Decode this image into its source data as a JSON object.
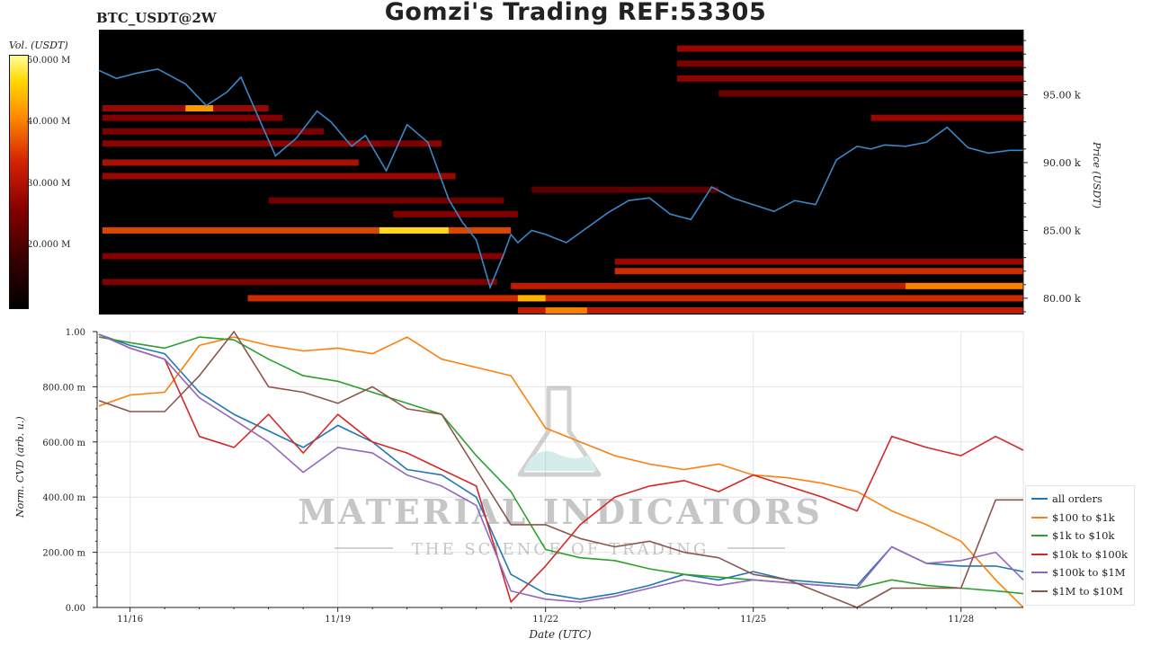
{
  "title": "Gomzi's Trading REF:53305",
  "symbol": "BTC_USDT@2W",
  "colorbar": {
    "title": "Vol. (USDT)",
    "ticks": [
      "50.000 M",
      "40.000 M",
      "30.000 M",
      "20.000 M"
    ]
  },
  "watermark": {
    "name": "MATERIAL INDICATORS",
    "tagline": "THE SCIENCE OF TRADING"
  },
  "chart_data": [
    {
      "type": "heatmap",
      "title": "BTC_USDT@2W",
      "ylabel": "Price (USDT)",
      "ylim": [
        78800,
        99800
      ],
      "y_ticks": [
        "80.00 k",
        "85.00 k",
        "90.00 k",
        "95.00 k"
      ],
      "colorbar_label": "Vol. (USDT)",
      "colorbar_ticks": [
        "50.000 M",
        "40.000 M",
        "30.000 M",
        "20.000 M"
      ],
      "price_series": {
        "color": "#3a87c8",
        "x": [
          15.55,
          15.8,
          16.1,
          16.4,
          16.8,
          17.1,
          17.4,
          17.6,
          17.9,
          18.1,
          18.4,
          18.7,
          18.9,
          19.2,
          19.4,
          19.7,
          20.0,
          20.3,
          20.6,
          20.8,
          21.0,
          21.2,
          21.4,
          21.5,
          21.6,
          21.8,
          22.0,
          22.3,
          22.6,
          22.9,
          23.2,
          23.5,
          23.8,
          24.1,
          24.4,
          24.7,
          25.0,
          25.3,
          25.6,
          25.9,
          26.2,
          26.5,
          26.7,
          26.9,
          27.2,
          27.5,
          27.8,
          28.1,
          28.4,
          28.7,
          28.9
        ],
        "y": [
          96.8,
          96.2,
          96.6,
          96.9,
          95.8,
          94.2,
          95.2,
          96.3,
          92.8,
          90.5,
          91.8,
          93.8,
          93.0,
          91.2,
          92.0,
          89.4,
          92.8,
          91.5,
          87.3,
          85.6,
          84.3,
          80.8,
          83.3,
          84.7,
          84.1,
          85.0,
          84.7,
          84.1,
          85.2,
          86.3,
          87.2,
          87.4,
          86.2,
          85.8,
          88.2,
          87.4,
          86.9,
          86.4,
          87.2,
          86.9,
          90.2,
          91.2,
          91.0,
          91.3,
          91.2,
          91.5,
          92.6,
          91.1,
          90.7,
          90.9,
          90.9
        ]
      },
      "liquidity_bands": [
        {
          "price": 98.4,
          "from": 23.9,
          "to": 28.9,
          "level": 0.45
        },
        {
          "price": 97.3,
          "from": 23.9,
          "to": 28.9,
          "level": 0.38
        },
        {
          "price": 96.2,
          "from": 23.9,
          "to": 28.9,
          "level": 0.42
        },
        {
          "price": 95.1,
          "from": 24.5,
          "to": 28.9,
          "level": 0.35
        },
        {
          "price": 94.0,
          "from": 15.6,
          "to": 18.0,
          "level": 0.45
        },
        {
          "price": 93.3,
          "from": 15.6,
          "to": 18.2,
          "level": 0.4
        },
        {
          "price": 93.3,
          "from": 26.7,
          "to": 28.9,
          "level": 0.45
        },
        {
          "price": 92.3,
          "from": 15.6,
          "to": 18.8,
          "level": 0.38
        },
        {
          "price": 91.4,
          "from": 15.6,
          "to": 20.5,
          "level": 0.42
        },
        {
          "price": 90.0,
          "from": 15.6,
          "to": 19.3,
          "level": 0.5
        },
        {
          "price": 89.0,
          "from": 15.6,
          "to": 20.7,
          "level": 0.45
        },
        {
          "price": 87.2,
          "from": 18.0,
          "to": 21.4,
          "level": 0.35
        },
        {
          "price": 86.2,
          "from": 19.8,
          "to": 21.6,
          "level": 0.4
        },
        {
          "price": 85.0,
          "from": 15.6,
          "to": 21.5,
          "level": 0.65
        },
        {
          "price": 85.0,
          "from": 19.6,
          "to": 20.6,
          "level": 0.92
        },
        {
          "price": 83.1,
          "from": 15.6,
          "to": 21.4,
          "level": 0.4
        },
        {
          "price": 82.7,
          "from": 23.0,
          "to": 28.9,
          "level": 0.45
        },
        {
          "price": 82.0,
          "from": 23.0,
          "to": 28.9,
          "level": 0.6
        },
        {
          "price": 81.2,
          "from": 15.6,
          "to": 21.3,
          "level": 0.38
        },
        {
          "price": 80.9,
          "from": 21.5,
          "to": 28.9,
          "level": 0.55
        },
        {
          "price": 80.9,
          "from": 27.2,
          "to": 28.9,
          "level": 0.75
        },
        {
          "price": 80.0,
          "from": 17.7,
          "to": 28.9,
          "level": 0.6
        },
        {
          "price": 80.0,
          "from": 21.6,
          "to": 22.0,
          "level": 0.85
        },
        {
          "price": 79.1,
          "from": 21.6,
          "to": 28.9,
          "level": 0.55
        },
        {
          "price": 79.1,
          "from": 22.0,
          "to": 22.6,
          "level": 0.75
        },
        {
          "price": 94.0,
          "from": 16.8,
          "to": 17.2,
          "level": 0.8
        },
        {
          "price": 91.4,
          "from": 19.6,
          "to": 20.2,
          "level": 0.35
        },
        {
          "price": 88.0,
          "from": 21.8,
          "to": 24.5,
          "level": 0.3
        }
      ]
    },
    {
      "type": "line",
      "xlabel": "Date (UTC)",
      "ylabel": "Norm. CVD (arb. u.)",
      "ylim": [
        0,
        1
      ],
      "y_ticks": [
        "0.00",
        "200.00 m",
        "400.00 m",
        "600.00 m",
        "800.00 m",
        "1.00"
      ],
      "x_ticks": [
        "11/16",
        "11/19",
        "11/22",
        "11/25",
        "11/28"
      ],
      "grid": true,
      "legend": "bottom-right",
      "x": [
        15.55,
        16.0,
        16.5,
        17.0,
        17.5,
        18.0,
        18.5,
        19.0,
        19.5,
        20.0,
        20.5,
        21.0,
        21.5,
        22.0,
        22.5,
        23.0,
        23.5,
        24.0,
        24.5,
        25.0,
        25.5,
        26.0,
        26.5,
        27.0,
        27.5,
        28.0,
        28.5,
        28.9
      ],
      "series": [
        {
          "name": "all orders",
          "color": "#1f77b4",
          "values": [
            0.99,
            0.95,
            0.92,
            0.78,
            0.7,
            0.64,
            0.58,
            0.66,
            0.6,
            0.5,
            0.48,
            0.4,
            0.12,
            0.05,
            0.03,
            0.05,
            0.08,
            0.12,
            0.1,
            0.13,
            0.1,
            0.09,
            0.08,
            0.22,
            0.16,
            0.15,
            0.15,
            0.13
          ]
        },
        {
          "name": "$100 to $1k",
          "color": "#ff7f0e",
          "values": [
            0.73,
            0.77,
            0.78,
            0.95,
            0.98,
            0.95,
            0.93,
            0.94,
            0.92,
            0.98,
            0.9,
            0.87,
            0.84,
            0.65,
            0.6,
            0.55,
            0.52,
            0.5,
            0.52,
            0.48,
            0.47,
            0.45,
            0.42,
            0.35,
            0.3,
            0.24,
            0.1,
            0.0
          ]
        },
        {
          "name": "$1k to $10k",
          "color": "#2ca02c",
          "values": [
            0.98,
            0.96,
            0.94,
            0.98,
            0.97,
            0.9,
            0.84,
            0.82,
            0.78,
            0.74,
            0.7,
            0.55,
            0.42,
            0.21,
            0.18,
            0.17,
            0.14,
            0.12,
            0.11,
            0.1,
            0.09,
            0.08,
            0.07,
            0.1,
            0.08,
            0.07,
            0.06,
            0.05
          ]
        },
        {
          "name": "$10k to $100k",
          "color": "#d62728",
          "values": [
            0.99,
            0.94,
            0.9,
            0.62,
            0.58,
            0.7,
            0.56,
            0.7,
            0.6,
            0.56,
            0.5,
            0.44,
            0.02,
            0.15,
            0.3,
            0.4,
            0.44,
            0.46,
            0.42,
            0.48,
            0.44,
            0.4,
            0.35,
            0.62,
            0.58,
            0.55,
            0.62,
            0.57
          ]
        },
        {
          "name": "$100k to $1M",
          "color": "#9467bd",
          "values": [
            0.99,
            0.94,
            0.9,
            0.76,
            0.68,
            0.6,
            0.49,
            0.58,
            0.56,
            0.48,
            0.44,
            0.37,
            0.06,
            0.03,
            0.02,
            0.04,
            0.07,
            0.1,
            0.08,
            0.1,
            0.09,
            0.08,
            0.07,
            0.22,
            0.16,
            0.17,
            0.2,
            0.1
          ]
        },
        {
          "name": "$1M to $10M",
          "color": "#8c564b",
          "values": [
            0.75,
            0.71,
            0.71,
            0.84,
            1.0,
            0.8,
            0.78,
            0.74,
            0.8,
            0.72,
            0.7,
            0.5,
            0.3,
            0.3,
            0.25,
            0.22,
            0.24,
            0.2,
            0.18,
            0.12,
            0.1,
            0.05,
            0.0,
            0.07,
            0.07,
            0.07,
            0.39,
            0.39
          ]
        }
      ]
    }
  ]
}
